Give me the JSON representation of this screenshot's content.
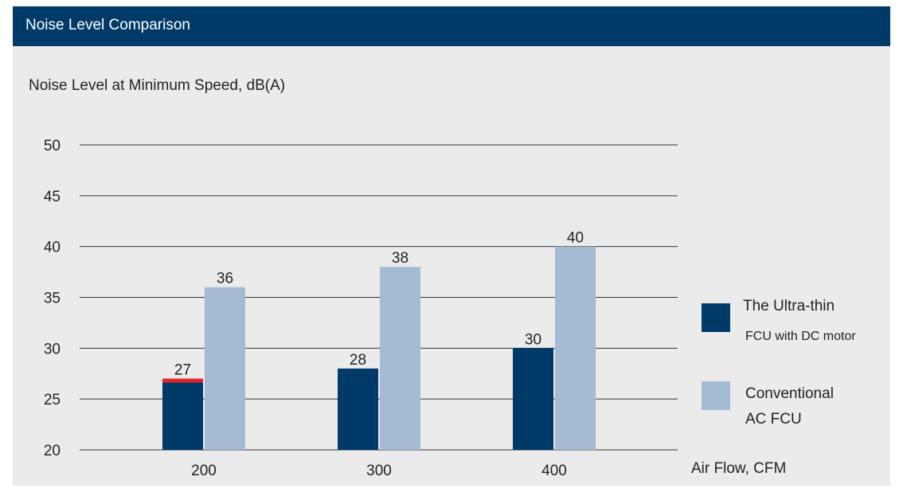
{
  "header": {
    "title": "Noise Level Comparison"
  },
  "chart_data": {
    "type": "bar",
    "title": "Noise Level at Minimum Speed, dB(A)",
    "xlabel": "Air Flow, CFM",
    "ylabel": "",
    "categories": [
      "200",
      "300",
      "400"
    ],
    "ylim": [
      20,
      50
    ],
    "yticks": [
      20,
      25,
      30,
      35,
      40,
      45,
      50
    ],
    "grid": true,
    "legend_position": "right",
    "series": [
      {
        "name": "The Ultra-thin FCU with DC motor",
        "name_lines": [
          "The Ultra-thin",
          "FCU with DC motor"
        ],
        "color": "#003a68",
        "values": [
          27,
          28,
          30
        ],
        "labels": [
          "27",
          "28",
          "30"
        ]
      },
      {
        "name": "Conventional AC FCU",
        "name_lines": [
          "Conventional",
          "AC FCU"
        ],
        "color": "#a3bcd3",
        "values": [
          36,
          38,
          40
        ],
        "labels": [
          "36",
          "38",
          "40"
        ]
      }
    ],
    "highlight_color": "#e3242b"
  }
}
